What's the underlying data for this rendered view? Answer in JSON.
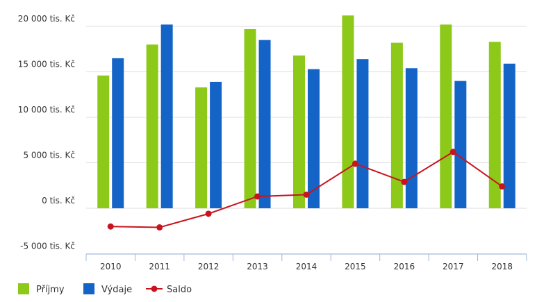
{
  "chart_data": {
    "type": "bar",
    "categories": [
      "2010",
      "2011",
      "2012",
      "2013",
      "2014",
      "2015",
      "2016",
      "2017",
      "2018"
    ],
    "series": [
      {
        "name": "Příjmy",
        "type": "bar",
        "color": "#8cc919",
        "values": [
          14600,
          18000,
          13300,
          19700,
          16800,
          21200,
          18200,
          20200,
          18300
        ]
      },
      {
        "name": "Výdaje",
        "type": "bar",
        "color": "#1464c8",
        "values": [
          16500,
          20200,
          13900,
          18500,
          15300,
          16400,
          15400,
          14000,
          15900
        ]
      },
      {
        "name": "Saldo",
        "type": "line",
        "color": "#c8141e",
        "values": [
          -2000,
          -2100,
          -600,
          1300,
          1500,
          4900,
          2900,
          6200,
          2400
        ]
      }
    ],
    "y_ticks": [
      {
        "value": -5000,
        "label": "-5 000 tis. Kč"
      },
      {
        "value": 0,
        "label": "0 tis. Kč"
      },
      {
        "value": 5000,
        "label": "5 000 tis. Kč"
      },
      {
        "value": 10000,
        "label": "10 000 tis. Kč"
      },
      {
        "value": 15000,
        "label": "15 000 tis. Kč"
      },
      {
        "value": 20000,
        "label": "20 000 tis. Kč"
      }
    ],
    "ylim": [
      -5000,
      20000
    ],
    "grid": true,
    "legend_position": "bottom-left"
  }
}
